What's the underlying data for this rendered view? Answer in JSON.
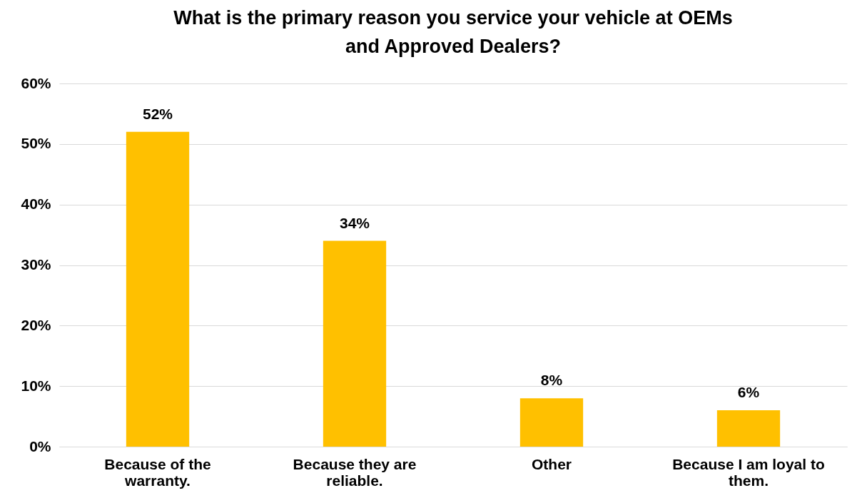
{
  "chart_data": {
    "type": "bar",
    "title": "What is the primary reason you service your vehicle at OEMs and Approved Dealers?",
    "categories": [
      "Because of the warranty.",
      "Because they are reliable.",
      "Other",
      "Because I am loyal to them."
    ],
    "values": [
      52,
      34,
      8,
      6
    ],
    "value_labels": [
      "52%",
      "34%",
      "8%",
      "6%"
    ],
    "color": "#ffc000",
    "ylim": [
      0,
      60
    ],
    "yticks": [
      {
        "value": 0,
        "label": "0%"
      },
      {
        "value": 10,
        "label": "10%"
      },
      {
        "value": 20,
        "label": "20%"
      },
      {
        "value": 30,
        "label": "30%"
      },
      {
        "value": 40,
        "label": "40%"
      },
      {
        "value": 50,
        "label": "50%"
      },
      {
        "value": 60,
        "label": "60%"
      }
    ],
    "grid": "y"
  }
}
